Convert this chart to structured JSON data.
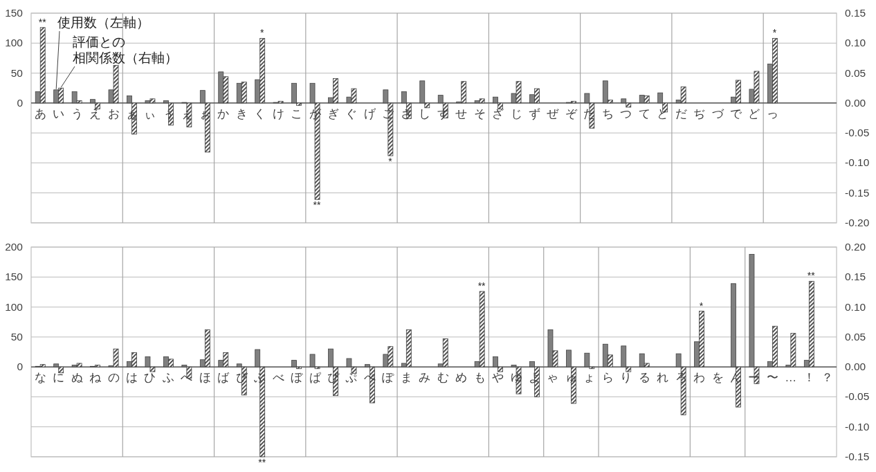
{
  "chart_data": [
    {
      "type": "bar",
      "categories": [
        "あ",
        "い",
        "う",
        "え",
        "お",
        "ぁ",
        "ぃ",
        "ぅ",
        "ぇ",
        "ぉ",
        "か",
        "き",
        "く",
        "け",
        "こ",
        "が",
        "ぎ",
        "ぐ",
        "げ",
        "ご",
        "さ",
        "し",
        "す",
        "せ",
        "そ",
        "ざ",
        "じ",
        "ず",
        "ぜ",
        "ぞ",
        "た",
        "ち",
        "つ",
        "て",
        "と",
        "だ",
        "ぢ",
        "づ",
        "で",
        "ど",
        "っ",
        null,
        null,
        null
      ],
      "series": [
        {
          "name": "使用数（左軸）",
          "color": "#808080",
          "values": [
            19,
            22,
            19,
            6,
            22,
            12,
            4,
            4,
            1,
            21,
            52,
            33,
            39,
            1,
            33,
            33,
            9,
            10,
            null,
            22,
            19,
            37,
            13,
            2,
            4,
            10,
            16,
            14,
            null,
            1,
            16,
            37,
            7,
            13,
            17,
            5,
            null,
            null,
            10,
            23,
            65,
            null,
            null,
            null
          ]
        },
        {
          "name": "評価との相関係数（右軸）",
          "color": "#404040",
          "axis": "y2",
          "values": [
            0.126,
            0.025,
            0.004,
            -0.01,
            0.063,
            -0.052,
            0.007,
            -0.037,
            -0.04,
            -0.082,
            0.044,
            0.035,
            0.108,
            0.003,
            -0.004,
            -0.161,
            0.041,
            0.024,
            null,
            -0.088,
            -0.026,
            -0.008,
            -0.025,
            0.036,
            0.007,
            -0.01,
            0.036,
            0.024,
            null,
            0.003,
            -0.042,
            0.005,
            -0.007,
            0.012,
            -0.015,
            0.027,
            null,
            null,
            0.038,
            0.053,
            0.108,
            null,
            null,
            null
          ]
        }
      ],
      "ylim": [
        -200,
        150
      ],
      "yticks": [
        0,
        50,
        100,
        150
      ],
      "y2lim": [
        -0.2,
        0.15
      ],
      "y2ticks": [
        {
          "value": -0.2,
          "label": "-0.20"
        },
        {
          "value": -0.15,
          "label": "-0.15"
        },
        {
          "value": -0.1,
          "label": "-0.10"
        },
        {
          "value": -0.05,
          "label": "-0.05"
        },
        {
          "value": 0,
          "label": "0.00"
        },
        {
          "value": 0.05,
          "label": "0.05"
        },
        {
          "value": 0.1,
          "label": "0.10"
        },
        {
          "value": 0.15,
          "label": "0.15"
        }
      ],
      "grid": true,
      "legend": "top left",
      "annotations": [
        {
          "text": "**",
          "x": "あ",
          "y": 126
        },
        {
          "text": "*",
          "x": "く",
          "y": 108
        },
        {
          "text": "**",
          "x": "が",
          "y": -161
        },
        {
          "text": "*",
          "x": "ご",
          "y": -88
        },
        {
          "text": "*",
          "x": "っ",
          "y": 108
        }
      ]
    },
    {
      "type": "bar",
      "categories": [
        "な",
        "に",
        "ぬ",
        "ね",
        "の",
        "は",
        "ひ",
        "ふ",
        "へ",
        "ほ",
        "ば",
        "び",
        "ぶ",
        "べ",
        "ぼ",
        "ぱ",
        "ぴ",
        "ぷ",
        "ぺ",
        "ぽ",
        "ま",
        "み",
        "む",
        "め",
        "も",
        "や",
        "ゆ",
        "よ",
        "ゃ",
        "ゅ",
        "ょ",
        "ら",
        "り",
        "る",
        "れ",
        "ろ",
        "わ",
        "を",
        "ん",
        "ー",
        "〜",
        "…",
        "！",
        "？"
      ],
      "series": [
        {
          "color": "#808080",
          "values": [
            1,
            5,
            3,
            1,
            2,
            9,
            17,
            17,
            3,
            12,
            11,
            5,
            29,
            null,
            11,
            21,
            30,
            14,
            4,
            21,
            6,
            null,
            5,
            null,
            9,
            17,
            3,
            9,
            62,
            28,
            23,
            38,
            35,
            22,
            null,
            22,
            42,
            null,
            139,
            188,
            9,
            3,
            11,
            null
          ]
        },
        {
          "color": "#404040",
          "axis": "y2",
          "values": [
            0.004,
            -0.01,
            0.006,
            0.003,
            0.03,
            0.024,
            -0.008,
            0.013,
            -0.019,
            0.062,
            0.024,
            -0.047,
            -0.15,
            null,
            -0.003,
            -0.003,
            -0.048,
            -0.011,
            -0.06,
            0.034,
            0.062,
            null,
            0.047,
            null,
            0.126,
            -0.008,
            -0.045,
            -0.05,
            0.027,
            -0.061,
            -0.003,
            0.02,
            -0.008,
            0.006,
            null,
            -0.08,
            0.093,
            null,
            -0.067,
            -0.028,
            0.068,
            0.056,
            0.143,
            null
          ]
        }
      ],
      "ylim": [
        -150,
        200
      ],
      "yticks": [
        0,
        50,
        100,
        150,
        200
      ],
      "y2lim": [
        -0.15,
        0.2
      ],
      "y2ticks": [
        {
          "value": -0.15,
          "label": "-0.15"
        },
        {
          "value": -0.1,
          "label": "-0.10"
        },
        {
          "value": -0.05,
          "label": "-0.05"
        },
        {
          "value": 0,
          "label": "0.00"
        },
        {
          "value": 0.05,
          "label": "0.05"
        },
        {
          "value": 0.1,
          "label": "0.10"
        },
        {
          "value": 0.15,
          "label": "0.15"
        },
        {
          "value": 0.2,
          "label": "0.20"
        }
      ],
      "grid": true,
      "annotations": [
        {
          "text": "**",
          "x": "ぶ",
          "y": -150
        },
        {
          "text": "**",
          "x": "も",
          "y": 126
        },
        {
          "text": "*",
          "x": "わ",
          "y": 93
        },
        {
          "text": "**",
          "x": "！",
          "y": 143
        }
      ]
    }
  ]
}
